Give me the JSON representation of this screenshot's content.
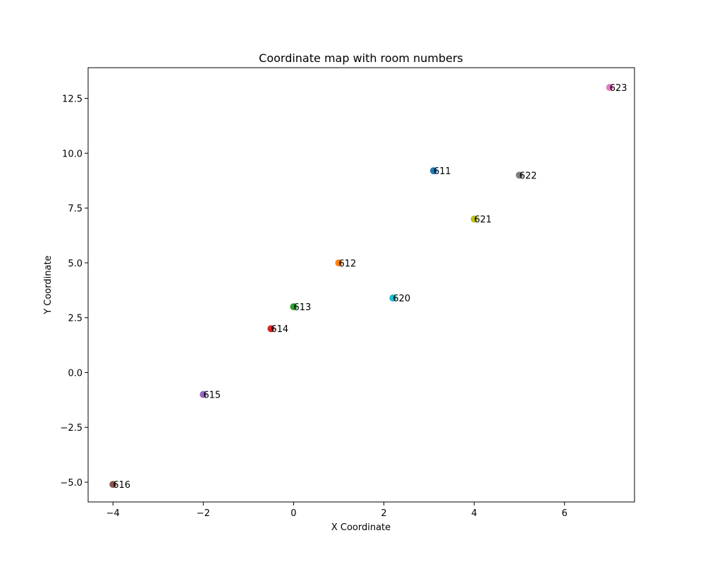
{
  "chart_data": {
    "type": "scatter",
    "title": "Coordinate map with room numbers",
    "xlabel": "X Coordinate",
    "ylabel": "Y Coordinate",
    "xlim": [
      -4.55,
      7.55
    ],
    "ylim": [
      -5.9,
      13.9
    ],
    "xticks": [
      -4,
      -2,
      0,
      2,
      4,
      6
    ],
    "yticks": [
      -5.0,
      -2.5,
      0.0,
      2.5,
      5.0,
      7.5,
      10.0,
      12.5
    ],
    "grid": false,
    "points": [
      {
        "label": "611",
        "x": 3.1,
        "y": 9.2,
        "color": "#1f77b4"
      },
      {
        "label": "612",
        "x": 1.0,
        "y": 5.0,
        "color": "#ff7f0e"
      },
      {
        "label": "613",
        "x": 0.0,
        "y": 3.0,
        "color": "#2ca02c"
      },
      {
        "label": "614",
        "x": -0.5,
        "y": 2.0,
        "color": "#d62728"
      },
      {
        "label": "615",
        "x": -2.0,
        "y": -1.0,
        "color": "#9467bd"
      },
      {
        "label": "616",
        "x": -4.0,
        "y": -5.1,
        "color": "#8c564b"
      },
      {
        "label": "623",
        "x": 7.0,
        "y": 13.0,
        "color": "#e377c2"
      },
      {
        "label": "622",
        "x": 5.0,
        "y": 9.0,
        "color": "#7f7f7f"
      },
      {
        "label": "621",
        "x": 4.0,
        "y": 7.0,
        "color": "#bcbd22"
      },
      {
        "label": "620",
        "x": 2.2,
        "y": 3.4,
        "color": "#17becf"
      }
    ]
  }
}
